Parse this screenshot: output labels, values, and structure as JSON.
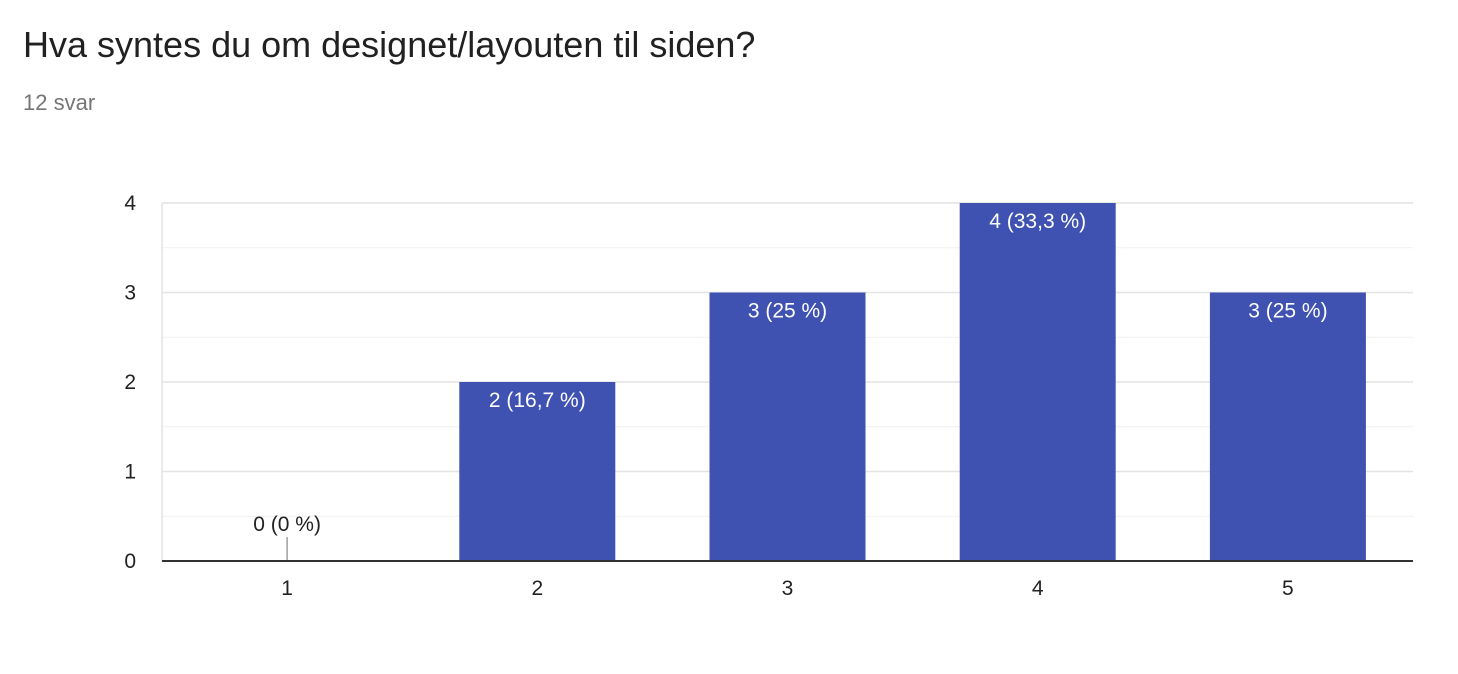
{
  "header": {
    "title": "Hva syntes du om designet/layouten til siden?",
    "responses": "12 svar"
  },
  "colors": {
    "bar": "#3f51b1",
    "grid_major": "#e4e4e4",
    "grid_minor": "#f1f1f1",
    "axis": "#333333",
    "label_inside": "#ffffff",
    "label_outside": "#222222"
  },
  "chart_data": {
    "type": "bar",
    "categories": [
      "1",
      "2",
      "3",
      "4",
      "5"
    ],
    "values": [
      0,
      2,
      3,
      4,
      3
    ],
    "data_labels": [
      "0 (0 %)",
      "2 (16,7 %)",
      "3 (25 %)",
      "4 (33,3 %)",
      "3 (25 %)"
    ],
    "ylim": [
      0,
      4
    ],
    "yticks": [
      "0",
      "1",
      "2",
      "3",
      "4"
    ],
    "xlabel": "",
    "ylabel": "",
    "grid": true
  }
}
